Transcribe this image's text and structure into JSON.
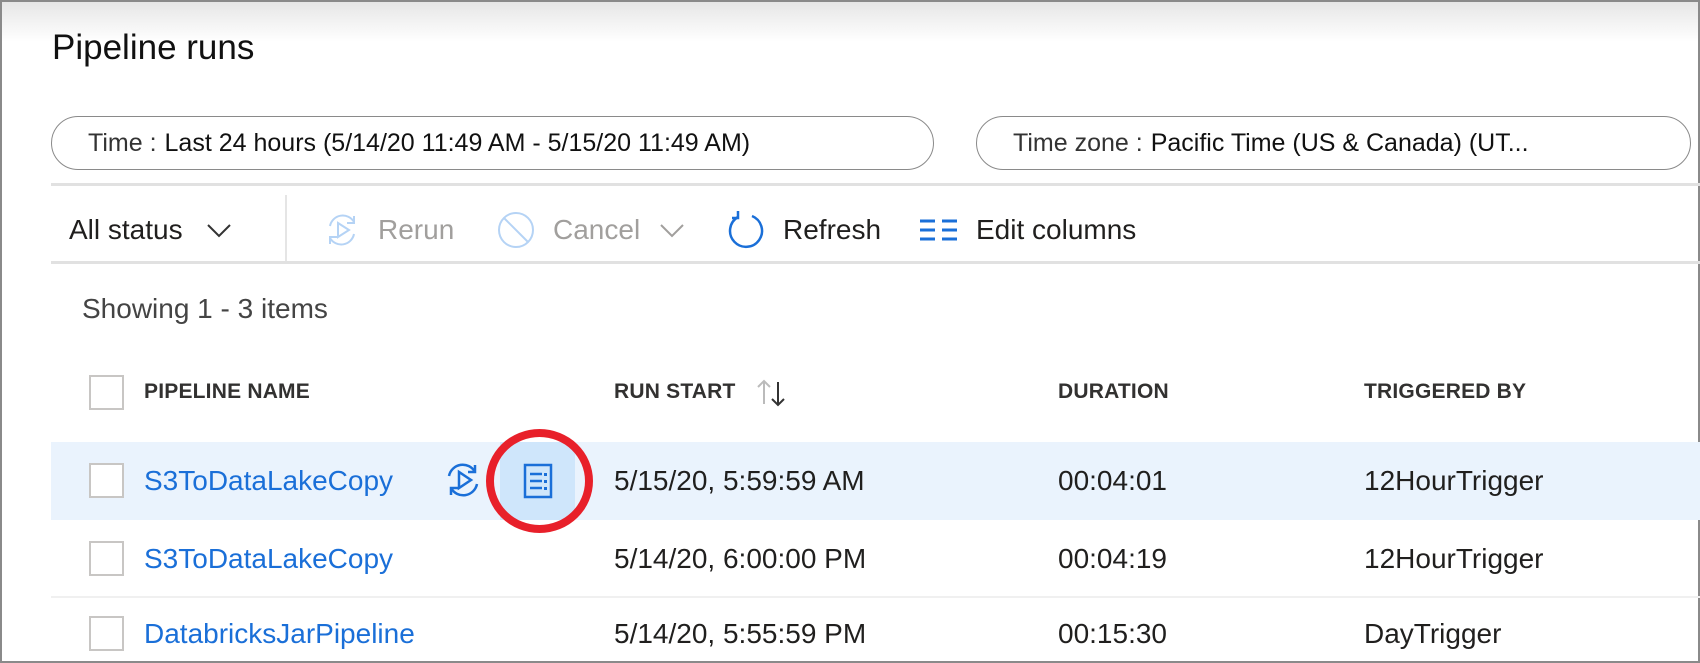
{
  "page": {
    "title": "Pipeline runs"
  },
  "filters": {
    "time": {
      "label": "Time :",
      "value": "Last 24 hours (5/14/20 11:49 AM - 5/15/20 11:49 AM)"
    },
    "timezone": {
      "label": "Time zone :",
      "value": "Pacific Time (US & Canada) (UT..."
    }
  },
  "toolbar": {
    "status": "All status",
    "rerun": "Rerun",
    "cancel": "Cancel",
    "refresh": "Refresh",
    "edit_columns": "Edit columns"
  },
  "list": {
    "showing": "Showing 1 - 3 items",
    "columns": [
      "PIPELINE NAME",
      "RUN START",
      "DURATION",
      "TRIGGERED BY"
    ],
    "rows": [
      {
        "name": "S3ToDataLakeCopy",
        "run_start": "5/15/20, 5:59:59 AM",
        "duration": "00:04:01",
        "triggered_by": "12HourTrigger",
        "selected": true
      },
      {
        "name": "S3ToDataLakeCopy",
        "run_start": "5/14/20, 6:00:00 PM",
        "duration": "00:04:19",
        "triggered_by": "12HourTrigger"
      },
      {
        "name": "DatabricksJarPipeline",
        "run_start": "5/14/20, 5:55:59 PM",
        "duration": "00:15:30",
        "triggered_by": "DayTrigger"
      }
    ]
  },
  "colors": {
    "accent": "#1a6fd8",
    "selected_row": "#eaf3fd",
    "annotation": "#e8202a"
  }
}
